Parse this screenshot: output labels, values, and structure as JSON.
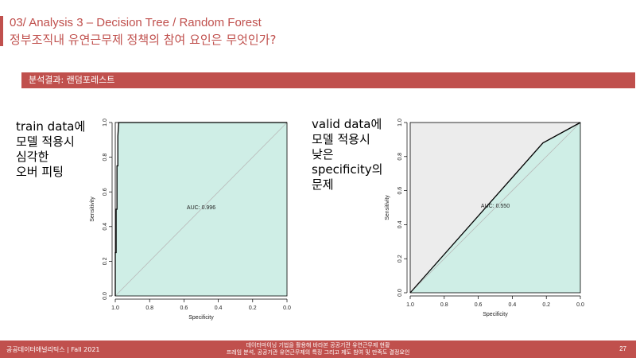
{
  "header": {
    "title": "03/ Analysis 3 – Decision Tree / Random Forest",
    "subtitle": "정부조직내 유연근무제 정책의 참여 요인은 무엇인가?"
  },
  "section": {
    "label": "분석결과: 랜덤포레스트"
  },
  "notes": {
    "left": [
      "train data에",
      "모델 적용시",
      "심각한",
      "오버 피팅"
    ],
    "right": [
      "valid data에",
      "모델 적용시",
      "낮은",
      "specificity의",
      "문제"
    ]
  },
  "colors": {
    "accent": "#c0504d",
    "auc_fill_train": "#cfeee6",
    "auc_fill_valid": "#cfeee6",
    "panel_bg_valid": "#ececec",
    "diagonal": "#b8b8b8"
  },
  "chart_data": [
    {
      "type": "line",
      "title": "",
      "xlabel": "Specificity",
      "ylabel": "Sensitivity",
      "xlim": [
        1.0,
        0.0
      ],
      "ylim": [
        0.0,
        1.0
      ],
      "xticks": [
        "1.0",
        "0.8",
        "0.6",
        "0.4",
        "0.2",
        "0.0"
      ],
      "yticks": [
        "0.0",
        "0.2",
        "0.4",
        "0.6",
        "0.8",
        "1.0"
      ],
      "auc_label": "AUC: 0.996",
      "auc_anchor": {
        "specificity": 0.5,
        "sensitivity": 0.5
      },
      "series": [
        {
          "specificity": [
            1.0,
            1.0,
            0.995,
            0.995,
            0.99,
            0.99,
            0.985,
            0.985,
            0.98,
            0.0
          ],
          "sensitivity": [
            0.0,
            0.25,
            0.25,
            0.5,
            0.5,
            0.75,
            0.75,
            0.92,
            1.0,
            1.0
          ]
        }
      ]
    },
    {
      "type": "line",
      "title": "",
      "xlabel": "Specificity",
      "ylabel": "Sensitivity",
      "xlim": [
        1.0,
        0.0
      ],
      "ylim": [
        0.0,
        1.0
      ],
      "xticks": [
        "1.0",
        "0.8",
        "0.6",
        "0.4",
        "0.2",
        "0.0"
      ],
      "yticks": [
        "0.0",
        "0.2",
        "0.4",
        "0.6",
        "0.8",
        "1.0"
      ],
      "auc_label": "AUC: 0.550",
      "auc_anchor": {
        "specificity": 0.5,
        "sensitivity": 0.5
      },
      "series": [
        {
          "specificity": [
            1.0,
            0.22,
            0.0
          ],
          "sensitivity": [
            0.0,
            0.88,
            1.0
          ]
        }
      ]
    }
  ],
  "footer": {
    "left": "공공데이터애널리틱스 | Fall 2021",
    "center_line1": "데이터마이닝 기법을 활용해 바라본 공공기관 유연근무제 현황",
    "center_line2": "프레임 분석, 공공기관 유연근무제의 특징 그리고 제도 참여 및 만족도 결정요인",
    "page": "27"
  }
}
